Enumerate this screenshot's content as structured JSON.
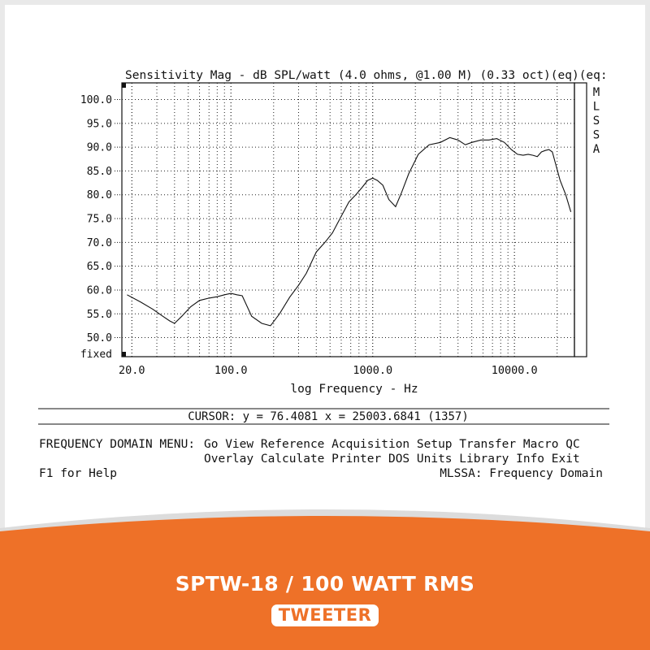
{
  "chart_data": {
    "type": "line",
    "title": "Sensitivity Mag - dB SPL/watt (4.0 ohms, @1.00 M) (0.33 oct)(eq)(eq:",
    "xlabel": "log Frequency - Hz",
    "ylabel": "",
    "x_scale": "log",
    "xlim": [
      17,
      26500
    ],
    "ylim": [
      46.0,
      103.5
    ],
    "grid": true,
    "x_ticks": [
      {
        "value": 20,
        "label": "20.0"
      },
      {
        "value": 100,
        "label": "100.0"
      },
      {
        "value": 1000,
        "label": "1000.0"
      },
      {
        "value": 10000,
        "label": "10000.0"
      }
    ],
    "y_ticks": [
      {
        "value": 100,
        "label": "100.0"
      },
      {
        "value": 95,
        "label": "95.0"
      },
      {
        "value": 90,
        "label": "90.0"
      },
      {
        "value": 85,
        "label": "85.0"
      },
      {
        "value": 80,
        "label": "80.0"
      },
      {
        "value": 75,
        "label": "75.0"
      },
      {
        "value": 70,
        "label": "70.0"
      },
      {
        "value": 65,
        "label": "65.0"
      },
      {
        "value": 60,
        "label": "60.0"
      },
      {
        "value": 55,
        "label": "55.0"
      },
      {
        "value": 50,
        "label": "50.0"
      }
    ],
    "y_bottom_label": "fixed",
    "side_label": [
      "M",
      "L",
      "S",
      "S",
      "A"
    ],
    "series": [
      {
        "x": [
          18.5,
          23,
          28,
          33,
          37,
          40,
          45,
          52,
          60,
          70,
          80,
          90,
          100,
          110,
          120,
          140,
          165,
          190,
          220,
          260,
          300,
          340,
          400,
          460,
          520,
          600,
          680,
          760,
          840,
          920,
          1000,
          1080,
          1180,
          1300,
          1450,
          1600,
          1800,
          2100,
          2500,
          3000,
          3500,
          4000,
          4500,
          5000,
          5800,
          6600,
          7500,
          8500,
          9500,
          10500,
          11500,
          12500,
          13500,
          14500,
          15500,
          16500,
          17500,
          18500,
          19500,
          21000,
          23000,
          25000
        ],
        "y": [
          59.0,
          57.5,
          56.0,
          54.5,
          53.5,
          53.0,
          54.5,
          56.5,
          57.8,
          58.3,
          58.6,
          59.0,
          59.3,
          59.0,
          58.8,
          54.5,
          53.0,
          52.5,
          55.0,
          58.5,
          61.0,
          63.5,
          68.0,
          70.0,
          72.0,
          75.5,
          78.5,
          80.0,
          81.5,
          83.0,
          83.5,
          83.0,
          82.0,
          79.0,
          77.5,
          80.5,
          84.5,
          88.5,
          90.5,
          91.0,
          92.0,
          91.5,
          90.5,
          91.0,
          91.5,
          91.5,
          91.8,
          91.0,
          89.5,
          88.5,
          88.3,
          88.5,
          88.3,
          88.0,
          89.0,
          89.3,
          89.5,
          89.0,
          86.5,
          83.0,
          80.0,
          76.4
        ]
      }
    ]
  },
  "cursor_readout": "CURSOR: y = 76.4081 x = 25003.6841 (1357)",
  "menu": {
    "label": "FREQUENCY DOMAIN MENU:",
    "row1": "Go View Reference Acquisition Setup Transfer Macro QC",
    "row2": "Overlay Calculate Printer DOS Units Library Info Exit",
    "help": "F1 for Help",
    "mode": "MLSSA: Frequency Domain"
  },
  "product": {
    "title": "SPTW-18 / 100 WATT RMS",
    "badge": "TWEETER"
  },
  "colors": {
    "banner": "#ee7128",
    "ink": "#111111",
    "page": "#ffffff"
  }
}
